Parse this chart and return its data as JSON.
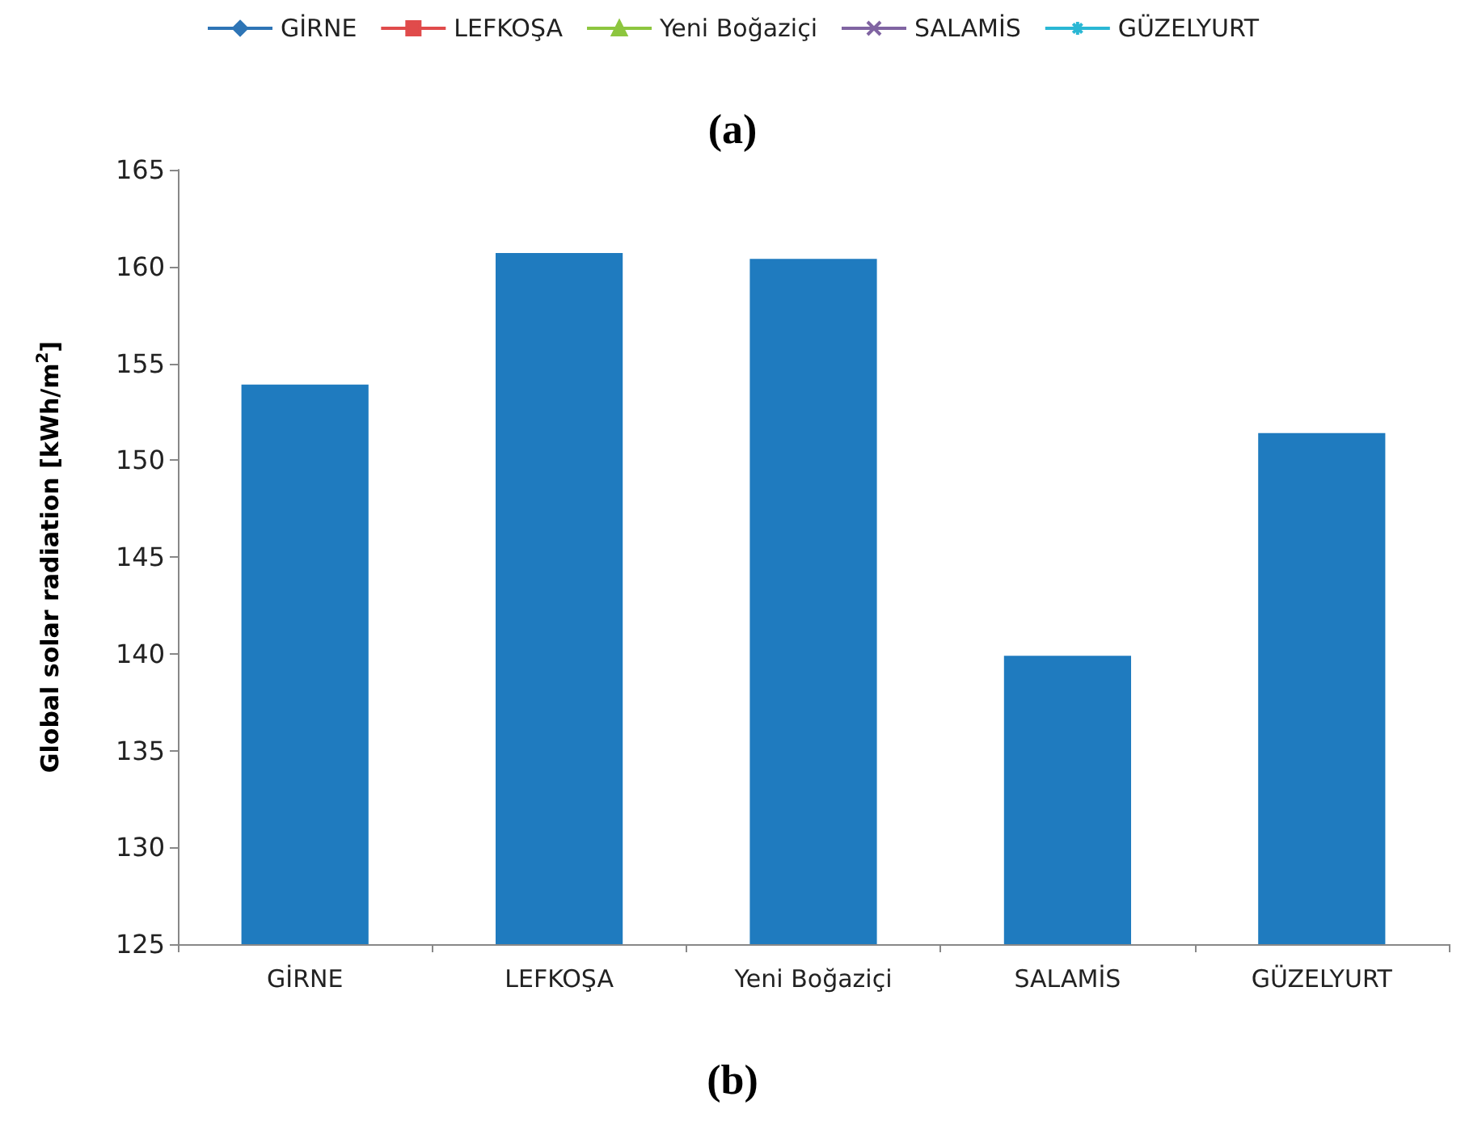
{
  "chart_data": {
    "type": "bar",
    "title": "(a)",
    "ylabel": "Global solar radiation [kWh/m$^{2}$]",
    "categories": [
      "GİRNE",
      "LEFKOŞA",
      "Yeni Boğaziçi",
      "SALAMİS",
      "GÜZELYURT"
    ],
    "series": [
      {
        "color": "#1f7bbf",
        "values": [
          153.9,
          160.7,
          160.4,
          139.9,
          151.4
        ]
      },
      {
        "type": "line",
        "name": "GİRNE",
        "color": "#2e75b6",
        "marker": "diamond",
        "values": [
          null,
          null,
          null,
          null,
          null
        ]
      },
      {
        "type": "line",
        "name": "LEFKOŞA",
        "color": "#e04b4b",
        "marker": "square",
        "values": [
          null,
          null,
          null,
          null,
          null
        ]
      },
      {
        "type": "line",
        "name": "Yeni Boğaziçi",
        "color": "#8dc63f",
        "marker": "triangle",
        "values": [
          null,
          null,
          null,
          null,
          null
        ]
      },
      {
        "type": "line",
        "name": "SALAMİS",
        "color": "#8064a2",
        "marker": "cross",
        "values": [
          null,
          null,
          null,
          null,
          null
        ]
      },
      {
        "type": "line",
        "name": "GÜZELYURT",
        "color": "#2ab7d4",
        "marker": "star",
        "values": [
          null,
          null,
          null,
          null,
          null
        ]
      }
    ],
    "ylim": [
      125,
      165
    ],
    "yticks": [
      125,
      130,
      135,
      140,
      145,
      150,
      155,
      160,
      165
    ],
    "grid": false,
    "legend": "top",
    "annotations": [
      "(b)"
    ]
  }
}
